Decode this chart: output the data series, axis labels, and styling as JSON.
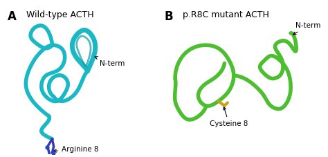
{
  "panel_A_label": "A",
  "panel_B_label": "B",
  "title_A": "Wild-type ACTH",
  "title_B": "p.R8C mutant ACTH",
  "annotation_A_residue": "Arginine 8",
  "annotation_B_residue": "Cysteine 8",
  "annotation_nterm_A": "N-term",
  "annotation_nterm_B": "N-term",
  "color_A": "#1ab8c4",
  "color_A_dark": "#0e9aaa",
  "color_A_residue": "#3a3aaa",
  "color_B": "#4dbe2f",
  "color_B_dark": "#2e9a15",
  "color_B_residue": "#c8a020",
  "bg_color": "#ffffff",
  "label_fontsize": 10,
  "title_fontsize": 9,
  "annot_fontsize": 7.5
}
